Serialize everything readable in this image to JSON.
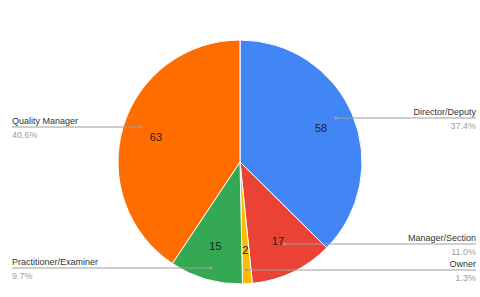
{
  "chart_data": {
    "type": "pie",
    "categories": [
      "Director/Deputy",
      "Manager/Section",
      "Owner",
      "Practitioner/Examiner",
      "Quality Manager"
    ],
    "values": [
      58,
      17,
      2,
      15,
      63
    ],
    "percent_labels": [
      "37.4%",
      "11.0%",
      "1.3%",
      "9.7%",
      "40.6%"
    ],
    "colors": [
      "#4285f4",
      "#ea4335",
      "#fbbc04",
      "#34a853",
      "#ff6d01"
    ],
    "data_labels": true
  }
}
